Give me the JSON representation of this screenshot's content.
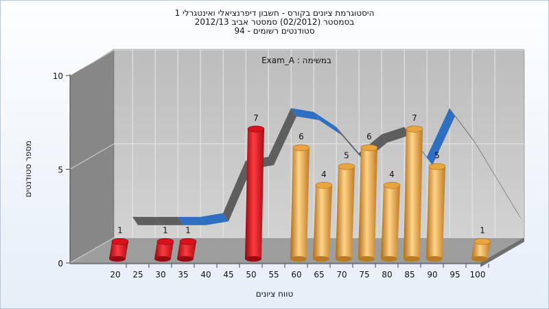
{
  "titles": [
    "היסטוגרמת ציונים בקורס - חשבון דיפרנציאלי ואינטגרלי 1",
    "בסמסטר  (02/2012)  סמסטר אביב 2012/13",
    "סטודנטים רשומים - 94"
  ],
  "chart_data": {
    "type": "bar",
    "annotation": "Exam_A : במשימה",
    "xlabel": "טווח ציונים",
    "ylabel": "מספר סטודנטים",
    "x_ticks": [
      "20",
      "25",
      "30",
      "35",
      "40",
      "45",
      "50",
      "55",
      "60",
      "65",
      "70",
      "75",
      "80",
      "85",
      "90",
      "95",
      "100"
    ],
    "ylim": [
      0,
      10
    ],
    "y_ticks": [
      "0",
      "5",
      "10"
    ],
    "bars": [
      {
        "x": 20,
        "value": 1,
        "label": "1",
        "color": "#d8121c"
      },
      {
        "x": 30,
        "value": 1,
        "label": "1",
        "color": "#d8121c"
      },
      {
        "x": 35,
        "value": 1,
        "label": "1",
        "color": "#d8121c"
      },
      {
        "x": 50,
        "value": 7,
        "label": "7",
        "color": "#d8121c"
      },
      {
        "x": 60,
        "value": 6,
        "label": "6",
        "color": "#e7a43f"
      },
      {
        "x": 65,
        "value": 4,
        "label": "4",
        "color": "#e7a43f"
      },
      {
        "x": 70,
        "value": 5,
        "label": "5",
        "color": "#e7a43f"
      },
      {
        "x": 75,
        "value": 6,
        "label": "6",
        "color": "#e7a43f"
      },
      {
        "x": 80,
        "value": 4,
        "label": "4",
        "color": "#e7a43f"
      },
      {
        "x": 85,
        "value": 7,
        "label": "7",
        "color": "#e7a43f"
      },
      {
        "x": 90,
        "value": 5,
        "label": "5",
        "color": "#e7a43f"
      },
      {
        "x": 100,
        "value": 1,
        "label": "1",
        "color": "#e7a43f"
      }
    ],
    "curve_points": [
      {
        "x": 20,
        "y": 1.8
      },
      {
        "x": 25,
        "y": 1.8
      },
      {
        "x": 30,
        "y": 1.8
      },
      {
        "x": 35,
        "y": 1.8
      },
      {
        "x": 40,
        "y": 2.0
      },
      {
        "x": 45,
        "y": 4.8
      },
      {
        "x": 50,
        "y": 5.0
      },
      {
        "x": 55,
        "y": 7.6
      },
      {
        "x": 60,
        "y": 7.4
      },
      {
        "x": 65,
        "y": 6.6
      },
      {
        "x": 70,
        "y": 5.2
      },
      {
        "x": 75,
        "y": 6.2
      },
      {
        "x": 80,
        "y": 6.6
      },
      {
        "x": 85,
        "y": 5.0
      },
      {
        "x": 90,
        "y": 7.6
      },
      {
        "x": 95,
        "y": 6.0
      },
      {
        "x": 100,
        "y": 4.0
      },
      {
        "x": 105,
        "y": 2.0
      }
    ],
    "colors": {
      "wall_back": "#c8c8c8",
      "wall_side": "#878787",
      "floor": "#a0a0a0",
      "curve_gray": "#5e5e5e",
      "curve_blue": "#2f6fc2"
    }
  }
}
